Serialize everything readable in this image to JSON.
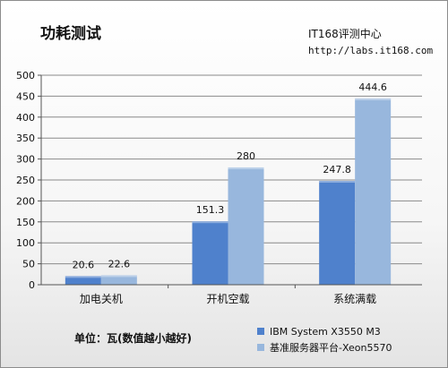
{
  "title": "功耗测试",
  "source": {
    "name": "IT168评测中心",
    "url": "http://labs.it168.com"
  },
  "note": "单位：瓦(数值越小越好)",
  "chart_data": {
    "type": "bar",
    "categories": [
      "加电关机",
      "开机空载",
      "系统满载"
    ],
    "series": [
      {
        "name": "IBM System X3550 M3",
        "values": [
          20.6,
          151.3,
          247.8
        ],
        "value_labels": [
          "20.6",
          "151.3",
          "247.8"
        ],
        "color": "#4f81cc"
      },
      {
        "name": "基准服务器平台-Xeon5570",
        "values": [
          22.6,
          280,
          444.6
        ],
        "value_labels": [
          "22.6",
          "280",
          "444.6"
        ],
        "color": "#98b7dd"
      }
    ],
    "ylim": [
      0,
      500
    ],
    "yticks": [
      "0",
      "50",
      "100",
      "150",
      "200",
      "250",
      "300",
      "350",
      "400",
      "450",
      "500"
    ],
    "grid": true,
    "legend_position": "bottom-right"
  }
}
